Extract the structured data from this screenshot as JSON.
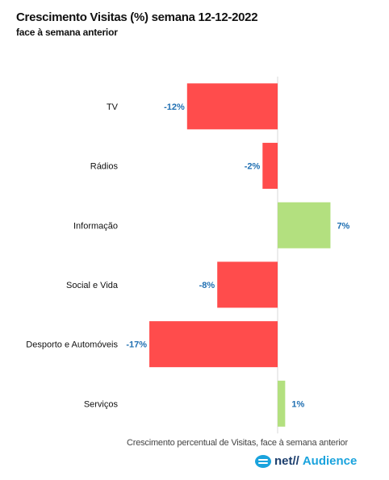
{
  "header": {
    "title": "Crescimento Visitas (%) semana 12-12-2022",
    "subtitle": "face à semana anterior"
  },
  "footnote": "Crescimento percentual de Visitas, face à semana anterior",
  "logo": {
    "net": "net//",
    "audience": "Audience"
  },
  "colors": {
    "negative": "#ff4c4c",
    "positive": "#b3e07f",
    "value_label": "#1f6fb2"
  },
  "chart_data": {
    "type": "bar",
    "orientation": "horizontal",
    "categories": [
      "TV",
      "Rádios",
      "Informação",
      "Social e Vida",
      "Desporto e Automóveis",
      "Serviços"
    ],
    "values": [
      -12,
      -2,
      7,
      -8,
      -17,
      1
    ],
    "value_labels": [
      "-12%",
      "-2%",
      "7%",
      "-8%",
      "-17%",
      "1%"
    ],
    "title": "Crescimento Visitas (%) semana 12-12-2022",
    "xlabel": "Crescimento percentual de Visitas, face à semana anterior",
    "ylabel": "",
    "xlim": [
      -17,
      7
    ],
    "grid": false,
    "legend": "none"
  }
}
